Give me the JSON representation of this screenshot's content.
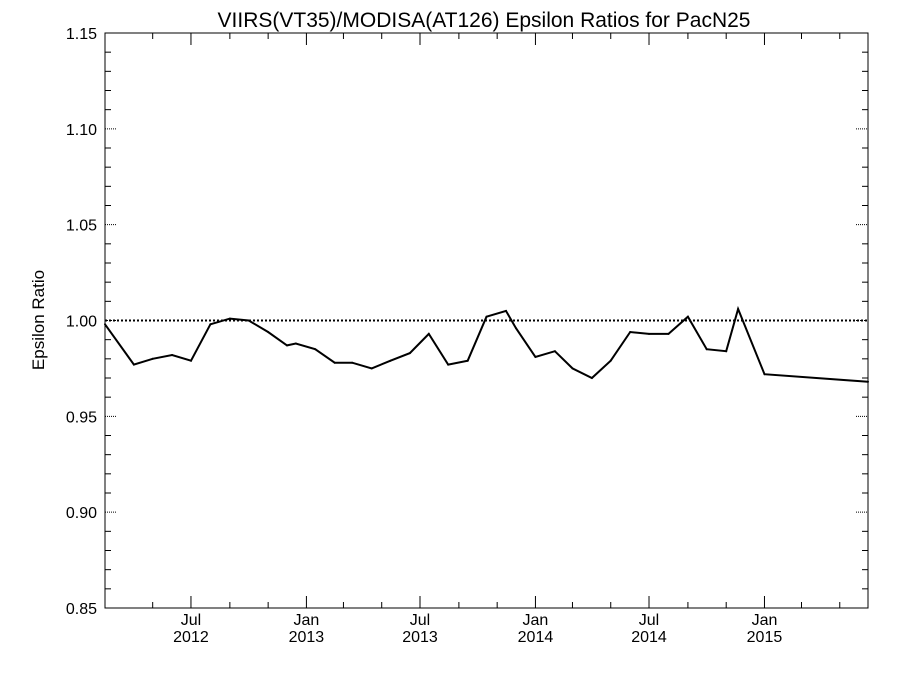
{
  "chart_data": {
    "type": "line",
    "title": "VIIRS(VT35)/MODISA(AT126)  Epsilon Ratios for PacN25",
    "xlabel": "",
    "ylabel": "Epsilon Ratio",
    "ylim": [
      0.85,
      1.15
    ],
    "xlim": [
      "2012-02-15",
      "2015-06-15"
    ],
    "y_ticks": [
      "0.85",
      "0.90",
      "0.95",
      "1.00",
      "1.05",
      "1.10",
      "1.15"
    ],
    "x_ticks": [
      {
        "date": "2012-07-01",
        "month": "Jul",
        "year": "2012"
      },
      {
        "date": "2013-01-01",
        "month": "Jan",
        "year": "2013"
      },
      {
        "date": "2013-07-01",
        "month": "Jul",
        "year": "2013"
      },
      {
        "date": "2014-01-01",
        "month": "Jan",
        "year": "2014"
      },
      {
        "date": "2014-07-01",
        "month": "Jul",
        "year": "2014"
      },
      {
        "date": "2015-01-01",
        "month": "Jan",
        "year": "2015"
      }
    ],
    "reference_line": {
      "y": 1.0,
      "style": "dotted"
    },
    "grid": false,
    "series": [
      {
        "name": "",
        "points": [
          [
            "2012-02-15",
            0.998
          ],
          [
            "2012-04-01",
            0.977
          ],
          [
            "2012-05-01",
            0.98
          ],
          [
            "2012-06-01",
            0.982
          ],
          [
            "2012-07-01",
            0.979
          ],
          [
            "2012-08-01",
            0.998
          ],
          [
            "2012-09-01",
            1.001
          ],
          [
            "2012-10-01",
            1.0
          ],
          [
            "2012-11-01",
            0.994
          ],
          [
            "2012-12-01",
            0.987
          ],
          [
            "2012-12-15",
            0.988
          ],
          [
            "2013-01-15",
            0.985
          ],
          [
            "2013-02-15",
            0.978
          ],
          [
            "2013-03-15",
            0.978
          ],
          [
            "2013-04-15",
            0.975
          ],
          [
            "2013-05-15",
            0.979
          ],
          [
            "2013-06-15",
            0.983
          ],
          [
            "2013-07-15",
            0.993
          ],
          [
            "2013-08-15",
            0.977
          ],
          [
            "2013-09-15",
            0.979
          ],
          [
            "2013-10-15",
            1.002
          ],
          [
            "2013-11-15",
            1.005
          ],
          [
            "2013-12-01",
            0.996
          ],
          [
            "2014-01-01",
            0.981
          ],
          [
            "2014-02-01",
            0.984
          ],
          [
            "2014-03-01",
            0.975
          ],
          [
            "2014-04-01",
            0.97
          ],
          [
            "2014-05-01",
            0.979
          ],
          [
            "2014-06-01",
            0.994
          ],
          [
            "2014-07-01",
            0.993
          ],
          [
            "2014-08-01",
            0.993
          ],
          [
            "2014-09-01",
            1.002
          ],
          [
            "2014-10-01",
            0.985
          ],
          [
            "2014-11-01",
            0.984
          ],
          [
            "2014-11-20",
            1.006
          ],
          [
            "2015-01-01",
            0.972
          ],
          [
            "2015-06-15",
            0.968
          ]
        ]
      }
    ]
  }
}
